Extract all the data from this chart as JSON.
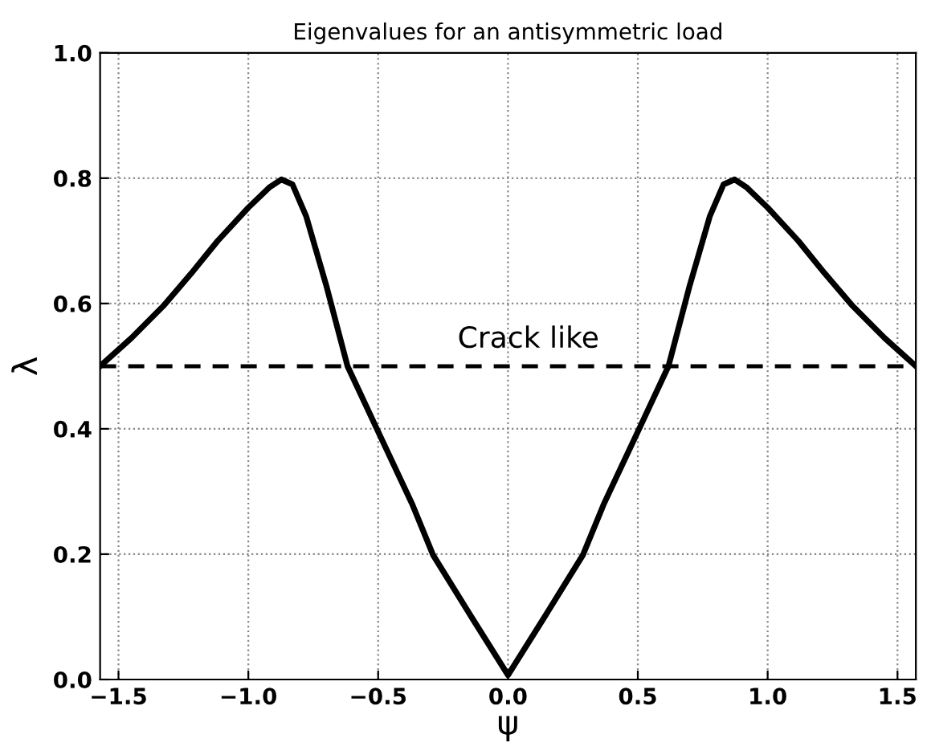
{
  "chart_data": {
    "type": "line",
    "title": "Eigenvalues for an antisymmetric load",
    "xlabel": "ψ",
    "ylabel": "λ",
    "x": [
      -1.5708,
      -1.45,
      -1.323,
      -1.22,
      -1.118,
      -1.0,
      -0.92,
      -0.873,
      -0.83,
      -0.777,
      -0.698,
      -0.618,
      -0.505,
      -0.368,
      -0.289,
      -0.141,
      0.0,
      0.141,
      0.289,
      0.368,
      0.505,
      0.618,
      0.698,
      0.777,
      0.83,
      0.873,
      0.92,
      1.0,
      1.118,
      1.22,
      1.323,
      1.45,
      1.5708
    ],
    "series": [
      {
        "color": "#000000",
        "values": [
          0.5,
          0.545,
          0.598,
          0.648,
          0.7,
          0.753,
          0.785,
          0.798,
          0.79,
          0.739,
          0.626,
          0.5,
          0.4,
          0.279,
          0.199,
          0.1,
          0.007,
          0.1,
          0.199,
          0.279,
          0.4,
          0.5,
          0.626,
          0.739,
          0.79,
          0.798,
          0.785,
          0.753,
          0.7,
          0.648,
          0.598,
          0.545,
          0.5
        ]
      }
    ],
    "xlim": [
      -1.5708,
      1.5708
    ],
    "ylim": [
      0,
      1
    ],
    "xticks": [
      {
        "value": -1.5,
        "label": "−1.5"
      },
      {
        "value": -1.0,
        "label": "−1.0"
      },
      {
        "value": -0.5,
        "label": "−0.5"
      },
      {
        "value": 0,
        "label": "0.0"
      },
      {
        "value": 0.5,
        "label": "0.5"
      },
      {
        "value": 1.0,
        "label": "1.0"
      },
      {
        "value": 1.5,
        "label": "1.5"
      }
    ],
    "yticks": [
      {
        "value": 0,
        "label": "0.0"
      },
      {
        "value": 0.2,
        "label": "0.2"
      },
      {
        "value": 0.4,
        "label": "0.4"
      },
      {
        "value": 0.6,
        "label": "0.6"
      },
      {
        "value": 0.8,
        "label": "0.8"
      },
      {
        "value": 1.0,
        "label": "1.0"
      }
    ],
    "ref_lines": [
      {
        "axis": "y",
        "value": 0.5,
        "label": "Crack like",
        "color": "#000000",
        "line_style": "dashed"
      }
    ],
    "grid": true,
    "line_style": "solid",
    "marker": "none"
  }
}
